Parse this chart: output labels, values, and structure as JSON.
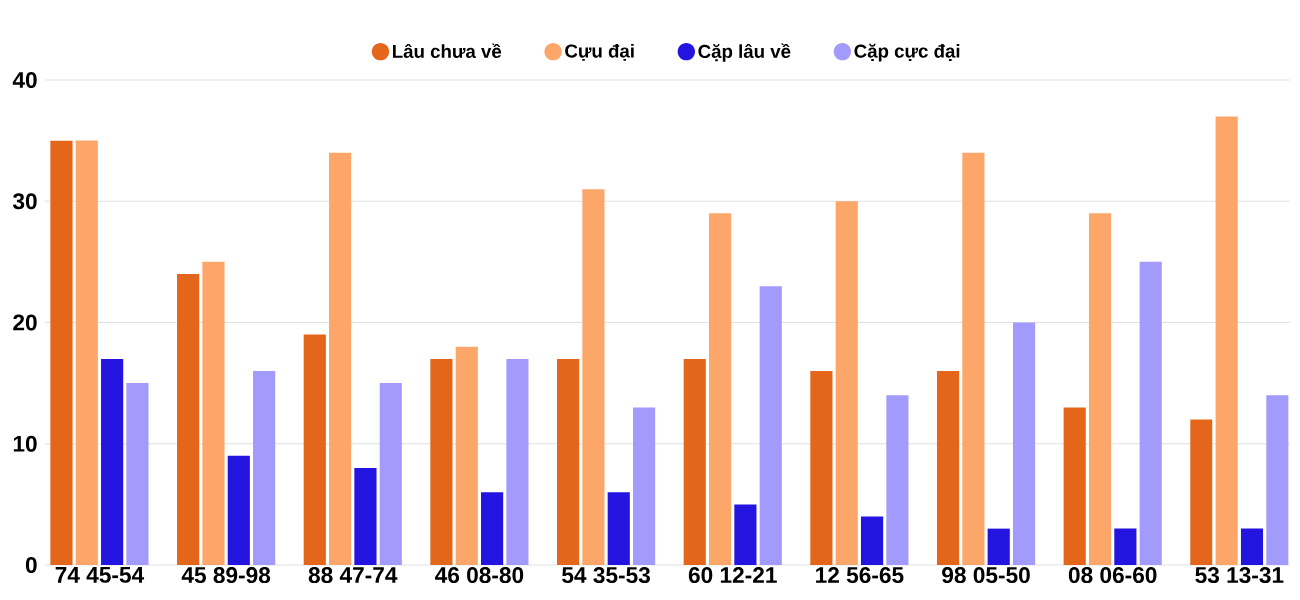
{
  "chart_data": {
    "type": "bar",
    "categories": [
      "74 45-54",
      "45 89-98",
      "88 47-74",
      "46 08-80",
      "54 35-53",
      "60 12-21",
      "12 56-65",
      "98 05-50",
      "08 06-60",
      "53 13-31"
    ],
    "series": [
      {
        "name": "Lâu chưa về",
        "color": "#e4661a",
        "values": [
          35,
          24,
          19,
          17,
          17,
          17,
          16,
          16,
          13,
          12
        ]
      },
      {
        "name": "Cựu đại",
        "color": "#fda66a",
        "values": [
          35,
          25,
          34,
          18,
          31,
          29,
          30,
          34,
          29,
          37
        ]
      },
      {
        "name": "Cặp lâu về",
        "color": "#2414e0",
        "values": [
          17,
          9,
          8,
          6,
          6,
          5,
          4,
          3,
          3,
          3
        ]
      },
      {
        "name": "Cặp cực đại",
        "color": "#a39bfb",
        "values": [
          15,
          16,
          15,
          17,
          13,
          23,
          14,
          20,
          25,
          14
        ]
      }
    ],
    "ylim": [
      0,
      40
    ],
    "yticks": [
      0,
      10,
      20,
      30,
      40
    ],
    "grid": "y",
    "legend": "top"
  }
}
